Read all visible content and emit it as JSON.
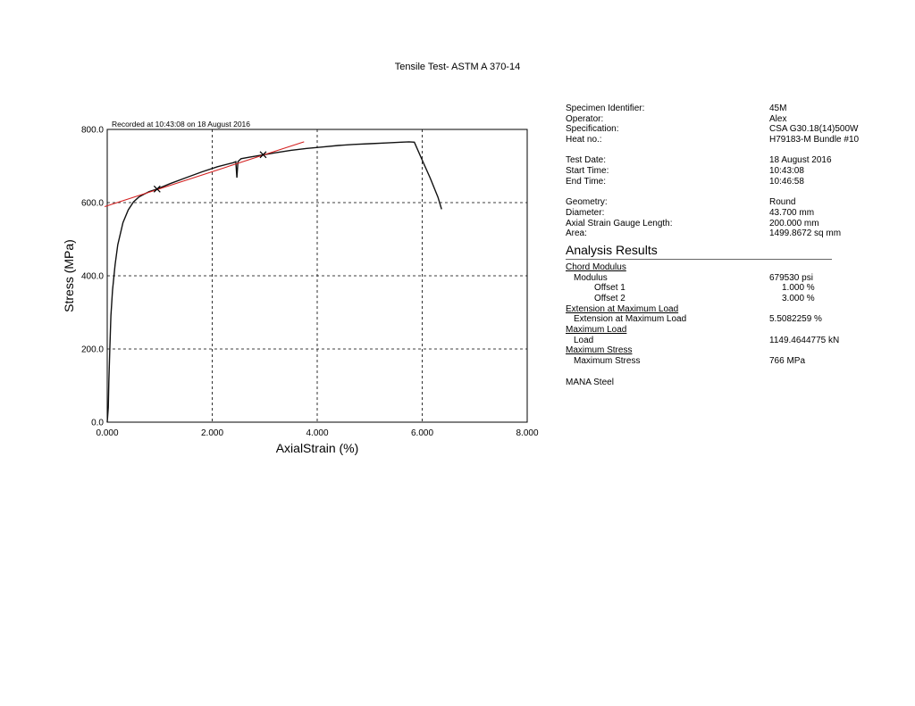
{
  "report": {
    "title": "Tensile Test- ASTM A 370-14"
  },
  "chart_data": {
    "type": "line",
    "title": "",
    "recorded_note": "Recorded at 10:43:08 on 18 August 2016",
    "xlabel": "AxialStrain (%)",
    "ylabel": "Stress (MPa)",
    "xlim": [
      0,
      8
    ],
    "ylim": [
      0,
      800
    ],
    "x_ticks": [
      0,
      2,
      4,
      6,
      8
    ],
    "y_ticks": [
      0,
      200,
      400,
      600,
      800
    ],
    "x_tick_labels": [
      "0.000",
      "2.000",
      "4.000",
      "6.000",
      "8.000"
    ],
    "y_tick_labels": [
      "0.0",
      "200.0",
      "400.0",
      "600.0",
      "800.0"
    ],
    "grid": true,
    "series": [
      {
        "color": "#111111",
        "x": [
          0.0,
          0.02,
          0.03,
          0.05,
          0.07,
          0.1,
          0.15,
          0.2,
          0.3,
          0.4,
          0.5,
          0.6,
          0.7,
          0.8,
          0.95,
          1.2,
          1.5,
          1.8,
          2.1,
          2.4,
          2.45,
          2.47,
          2.49,
          2.55,
          2.7,
          2.95,
          3.2,
          3.5,
          3.8,
          4.1,
          4.4,
          4.7,
          5.0,
          5.3,
          5.6,
          5.75,
          5.85,
          6.0,
          6.15,
          6.3,
          6.37
        ],
        "y": [
          0,
          40,
          110,
          200,
          290,
          360,
          430,
          485,
          545,
          580,
          602,
          615,
          623,
          630,
          637,
          652,
          668,
          684,
          698,
          709,
          712,
          668,
          712,
          720,
          724,
          730,
          736,
          743,
          748,
          752,
          756,
          759,
          761,
          763,
          765,
          766,
          765,
          716,
          668,
          615,
          582
        ]
      },
      {
        "color": "#d32020",
        "x": [
          -0.05,
          3.75
        ],
        "y": [
          589,
          766
        ]
      }
    ],
    "markers": [
      {
        "x": 0.95,
        "y": 637
      },
      {
        "x": 2.97,
        "y": 731
      }
    ]
  },
  "specimen": [
    {
      "label": "Specimen Identifier:",
      "value": "45M"
    },
    {
      "label": "Operator:",
      "value": "Alex"
    },
    {
      "label": "Specification:",
      "value": "CSA G30.18(14)500W"
    },
    {
      "label": "Heat no.:",
      "value": "H79183-M Bundle #10"
    }
  ],
  "timing": [
    {
      "label": "Test Date:",
      "value": "18 August 2016"
    },
    {
      "label": "Start Time:",
      "value": "10:43:08"
    },
    {
      "label": "End Time:",
      "value": "10:46:58"
    }
  ],
  "geometry": [
    {
      "label": "Geometry:",
      "value": "Round"
    },
    {
      "label": "Diameter:",
      "value": "43.700 mm"
    },
    {
      "label": "Axial Strain Gauge Length:",
      "value": "200.000 mm"
    },
    {
      "label": "Area:",
      "value": "1499.8672 sq mm"
    }
  ],
  "analysis": {
    "heading": "Analysis Results",
    "chord_modulus": {
      "section": "Chord Modulus",
      "modulus_label": "Modulus",
      "modulus_value": "679530 psi",
      "offset1_label": "Offset 1",
      "offset1_value": "1.000 %",
      "offset2_label": "Offset 2",
      "offset2_value": "3.000 %"
    },
    "extension": {
      "section": "Extension at Maximum Load",
      "label": "Extension at Maximum Load",
      "value": "5.5082259 %"
    },
    "max_load": {
      "section": "Maximum Load",
      "label": "Load",
      "value": "1149.4644775 kN"
    },
    "max_stress": {
      "section": "Maximum Stress",
      "label": "Maximum Stress",
      "value": "766 MPa"
    },
    "footer": "MANA Steel"
  }
}
